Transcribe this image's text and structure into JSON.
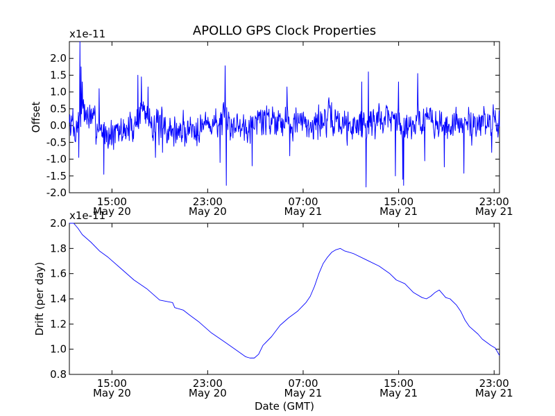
{
  "figure_title": "APOLLO GPS Clock Properties",
  "chart_data": [
    {
      "type": "line",
      "title": "APOLLO GPS Clock Properties",
      "ylabel": "Offset",
      "xlabel": "",
      "y_scale_label": "x1e-11",
      "ylim": [
        -2.0,
        2.5
      ],
      "xlim": [
        0,
        1
      ],
      "yticks": [
        {
          "value": 2.0,
          "label": "2.0"
        },
        {
          "value": 1.5,
          "label": "1.5"
        },
        {
          "value": 1.0,
          "label": "1.0"
        },
        {
          "value": 0.5,
          "label": "0.5"
        },
        {
          "value": 0.0,
          "label": "0.0"
        },
        {
          "value": -0.5,
          "label": "-0.5"
        },
        {
          "value": -1.0,
          "label": "-1.0"
        },
        {
          "value": -1.5,
          "label": "-1.5"
        },
        {
          "value": -2.0,
          "label": "-2.0"
        }
      ],
      "xticks": [
        {
          "frac": 0.099,
          "time": "15:00",
          "date": "May 20"
        },
        {
          "frac": 0.3215,
          "time": "23:00",
          "date": "May 20"
        },
        {
          "frac": 0.5435,
          "time": "07:00",
          "date": "May 21"
        },
        {
          "frac": 0.7655,
          "time": "15:00",
          "date": "May 21"
        },
        {
          "frac": 0.9875,
          "time": "23:00",
          "date": "May 21"
        }
      ],
      "color": "#0000ff",
      "series": [
        {
          "name": "Offset",
          "generated_noise": {
            "seed": 7,
            "n": 1100,
            "amplitude": 0.33
          },
          "envelope": [
            [
              0.0,
              0.1
            ],
            [
              0.015,
              -0.2
            ],
            [
              0.025,
              0.5
            ],
            [
              0.05,
              0.2
            ],
            [
              0.08,
              -0.2
            ],
            [
              0.1,
              -0.3
            ],
            [
              0.15,
              0.0
            ],
            [
              0.17,
              0.5
            ],
            [
              0.2,
              0.0
            ],
            [
              0.25,
              -0.2
            ],
            [
              0.3,
              0.0
            ],
            [
              0.35,
              0.1
            ],
            [
              0.4,
              0.0
            ],
            [
              0.45,
              0.2
            ],
            [
              0.5,
              0.2
            ],
            [
              0.55,
              0.0
            ],
            [
              0.6,
              0.2
            ],
            [
              0.65,
              0.0
            ],
            [
              0.7,
              0.1
            ],
            [
              0.74,
              0.3
            ],
            [
              0.78,
              0.0
            ],
            [
              0.82,
              0.2
            ],
            [
              0.86,
              0.0
            ],
            [
              0.9,
              0.0
            ],
            [
              0.95,
              0.1
            ],
            [
              1.0,
              0.0
            ]
          ],
          "spikes": [
            [
              0.008,
              0.5
            ],
            [
              0.022,
              -0.95
            ],
            [
              0.025,
              2.5
            ],
            [
              0.027,
              1.75
            ],
            [
              0.03,
              1.3
            ],
            [
              0.069,
              1.1
            ],
            [
              0.08,
              -1.45
            ],
            [
              0.159,
              1.5
            ],
            [
              0.167,
              1.45
            ],
            [
              0.183,
              1.15
            ],
            [
              0.2,
              -0.95
            ],
            [
              0.217,
              -0.8
            ],
            [
              0.35,
              -1.1
            ],
            [
              0.362,
              1.78
            ],
            [
              0.365,
              -1.78
            ],
            [
              0.425,
              -1.2
            ],
            [
              0.506,
              1.15
            ],
            [
              0.512,
              -0.9
            ],
            [
              0.68,
              1.3
            ],
            [
              0.69,
              -1.83
            ],
            [
              0.695,
              1.6
            ],
            [
              0.758,
              -1.5
            ],
            [
              0.765,
              1.3
            ],
            [
              0.775,
              -1.6
            ],
            [
              0.777,
              -1.78
            ],
            [
              0.81,
              1.55
            ],
            [
              0.826,
              -1.05
            ],
            [
              0.872,
              -1.23
            ],
            [
              0.917,
              -1.42
            ],
            [
              0.982,
              -0.8
            ],
            [
              0.99,
              0.45
            ]
          ]
        }
      ]
    },
    {
      "type": "line",
      "title": "",
      "ylabel": "Drift (per day)",
      "xlabel": "Date (GMT)",
      "y_scale_label": "x1e-11",
      "ylim": [
        0.8,
        2.0
      ],
      "xlim": [
        0,
        1
      ],
      "yticks": [
        {
          "value": 2.0,
          "label": "2.0"
        },
        {
          "value": 1.8,
          "label": "1.8"
        },
        {
          "value": 1.6,
          "label": "1.6"
        },
        {
          "value": 1.4,
          "label": "1.4"
        },
        {
          "value": 1.2,
          "label": "1.2"
        },
        {
          "value": 1.0,
          "label": "1.0"
        },
        {
          "value": 0.8,
          "label": "0.8"
        }
      ],
      "xticks": [
        {
          "frac": 0.099,
          "time": "15:00",
          "date": "May 20"
        },
        {
          "frac": 0.3215,
          "time": "23:00",
          "date": "May 20"
        },
        {
          "frac": 0.5435,
          "time": "07:00",
          "date": "May 21"
        },
        {
          "frac": 0.7655,
          "time": "15:00",
          "date": "May 21"
        },
        {
          "frac": 0.9875,
          "time": "23:00",
          "date": "May 21"
        }
      ],
      "color": "#0000ff",
      "series": [
        {
          "name": "Drift",
          "points": [
            [
              0.0,
              2.0
            ],
            [
              0.01,
              2.0
            ],
            [
              0.02,
              1.96
            ],
            [
              0.03,
              1.91
            ],
            [
              0.05,
              1.85
            ],
            [
              0.07,
              1.78
            ],
            [
              0.09,
              1.73
            ],
            [
              0.12,
              1.64
            ],
            [
              0.15,
              1.55
            ],
            [
              0.18,
              1.48
            ],
            [
              0.21,
              1.39
            ],
            [
              0.24,
              1.37
            ],
            [
              0.245,
              1.33
            ],
            [
              0.265,
              1.31
            ],
            [
              0.28,
              1.27
            ],
            [
              0.3,
              1.22
            ],
            [
              0.33,
              1.13
            ],
            [
              0.36,
              1.06
            ],
            [
              0.385,
              1.0
            ],
            [
              0.41,
              0.94
            ],
            [
              0.42,
              0.93
            ],
            [
              0.43,
              0.93
            ],
            [
              0.44,
              0.96
            ],
            [
              0.45,
              1.03
            ],
            [
              0.47,
              1.1
            ],
            [
              0.49,
              1.19
            ],
            [
              0.51,
              1.25
            ],
            [
              0.53,
              1.3
            ],
            [
              0.55,
              1.37
            ],
            [
              0.56,
              1.42
            ],
            [
              0.57,
              1.5
            ],
            [
              0.58,
              1.6
            ],
            [
              0.59,
              1.68
            ],
            [
              0.6,
              1.73
            ],
            [
              0.61,
              1.77
            ],
            [
              0.62,
              1.79
            ],
            [
              0.63,
              1.8
            ],
            [
              0.64,
              1.78
            ],
            [
              0.66,
              1.76
            ],
            [
              0.69,
              1.71
            ],
            [
              0.72,
              1.66
            ],
            [
              0.745,
              1.6
            ],
            [
              0.76,
              1.55
            ],
            [
              0.78,
              1.52
            ],
            [
              0.8,
              1.45
            ],
            [
              0.82,
              1.41
            ],
            [
              0.83,
              1.4
            ],
            [
              0.84,
              1.42
            ],
            [
              0.85,
              1.45
            ],
            [
              0.86,
              1.47
            ],
            [
              0.865,
              1.45
            ],
            [
              0.875,
              1.41
            ],
            [
              0.885,
              1.4
            ],
            [
              0.9,
              1.35
            ],
            [
              0.91,
              1.3
            ],
            [
              0.92,
              1.23
            ],
            [
              0.93,
              1.18
            ],
            [
              0.95,
              1.12
            ],
            [
              0.96,
              1.08
            ],
            [
              0.98,
              1.03
            ],
            [
              0.99,
              1.01
            ],
            [
              1.0,
              0.95
            ]
          ]
        }
      ]
    }
  ]
}
